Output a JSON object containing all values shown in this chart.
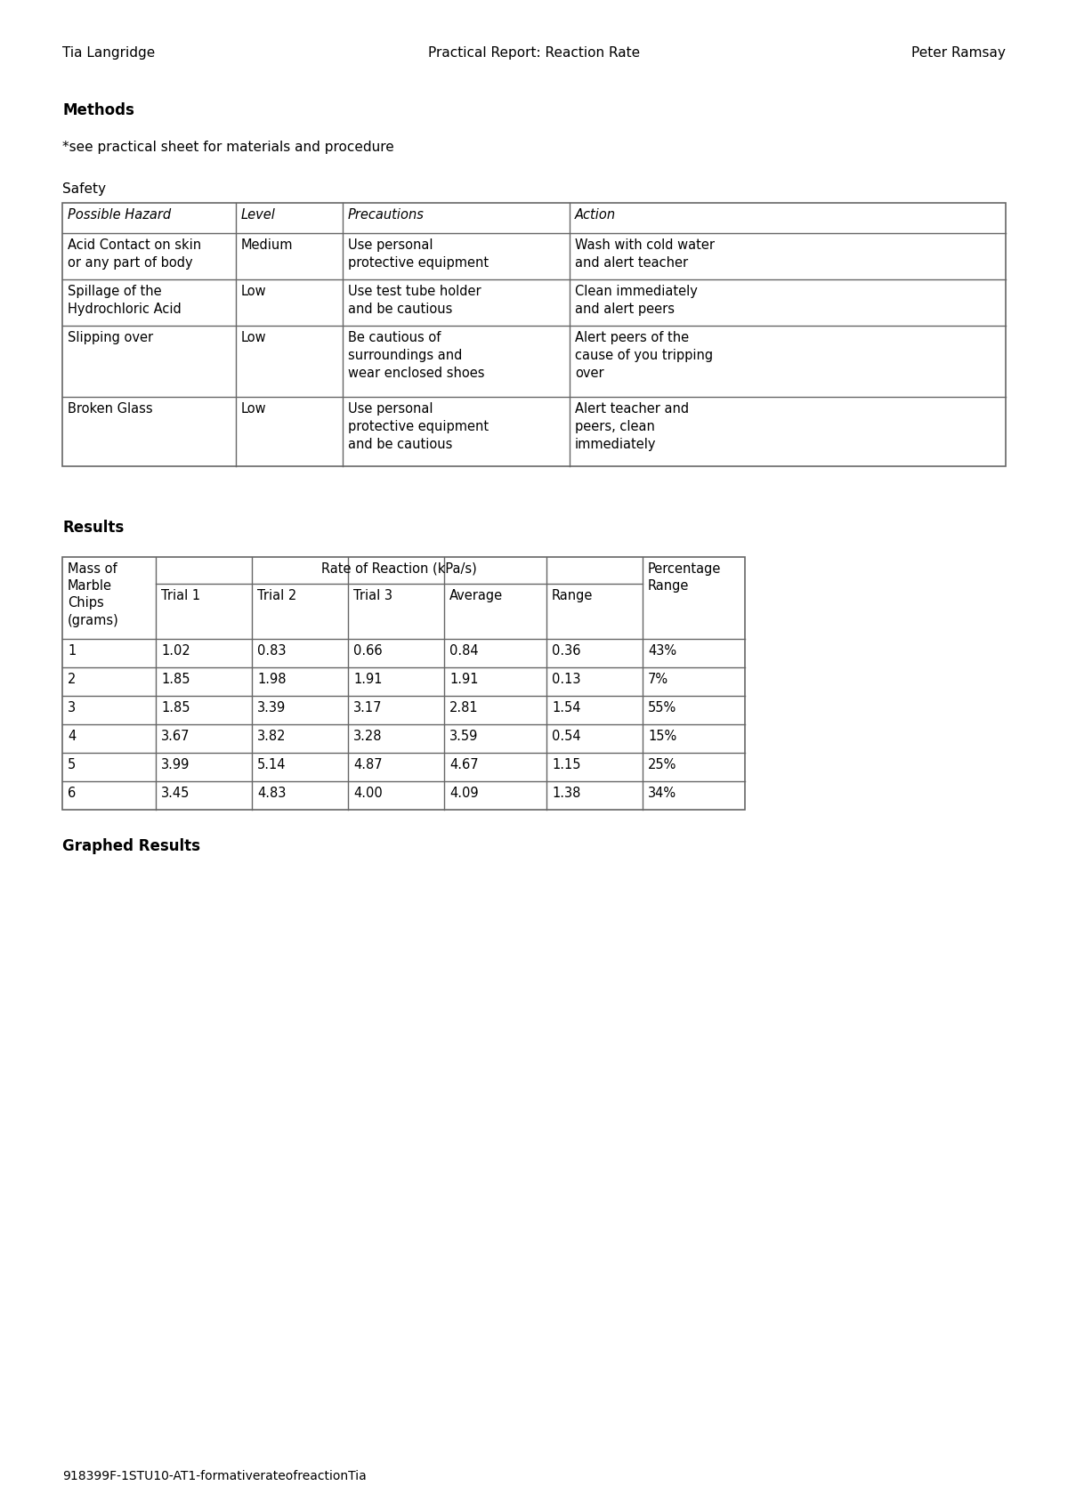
{
  "header_left": "Tia Langridge",
  "header_center": "Practical Report: Reaction Rate",
  "header_right": "Peter Ramsay",
  "section_methods": "Methods",
  "methods_note": "*see practical sheet for materials and procedure",
  "safety_label": "Safety",
  "safety_table_headers": [
    "Possible Hazard",
    "Level",
    "Precautions",
    "Action"
  ],
  "safety_table_rows": [
    [
      "Acid Contact on skin\nor any part of body",
      "Medium",
      "Use personal\nprotective equipment",
      "Wash with cold water\nand alert teacher"
    ],
    [
      "Spillage of the\nHydrochloric Acid",
      "Low",
      "Use test tube holder\nand be cautious",
      "Clean immediately\nand alert peers"
    ],
    [
      "Slipping over",
      "Low",
      "Be cautious of\nsurroundings and\nwear enclosed shoes",
      "Alert peers of the\ncause of you tripping\nover"
    ],
    [
      "Broken Glass",
      "Low",
      "Use personal\nprotective equipment\nand be cautious",
      "Alert teacher and\npeers, clean\nimmediately"
    ]
  ],
  "section_results": "Results",
  "results_col0_header": "Mass of\nMarble\nChips\n(grams)",
  "results_table_span_header": "Rate of Reaction (kPa/s)",
  "results_table_sub_headers": [
    "Trial 1",
    "Trial 2",
    "Trial 3",
    "Average",
    "Range"
  ],
  "results_table_last_header": "Percentage\nRange",
  "results_table_rows": [
    [
      "1",
      "1.02",
      "0.83",
      "0.66",
      "0.84",
      "0.36",
      "43%"
    ],
    [
      "2",
      "1.85",
      "1.98",
      "1.91",
      "1.91",
      "0.13",
      "7%"
    ],
    [
      "3",
      "1.85",
      "3.39",
      "3.17",
      "2.81",
      "1.54",
      "55%"
    ],
    [
      "4",
      "3.67",
      "3.82",
      "3.28",
      "3.59",
      "0.54",
      "15%"
    ],
    [
      "5",
      "3.99",
      "5.14",
      "4.87",
      "4.67",
      "1.15",
      "25%"
    ],
    [
      "6",
      "3.45",
      "4.83",
      "4.00",
      "4.09",
      "1.38",
      "34%"
    ]
  ],
  "section_graphed": "Graphed Results",
  "footer": "918399F-1STU10-AT1-formativerateofreactionTia",
  "bg_color": "#ffffff",
  "text_color": "#000000",
  "border_color": "#666666"
}
